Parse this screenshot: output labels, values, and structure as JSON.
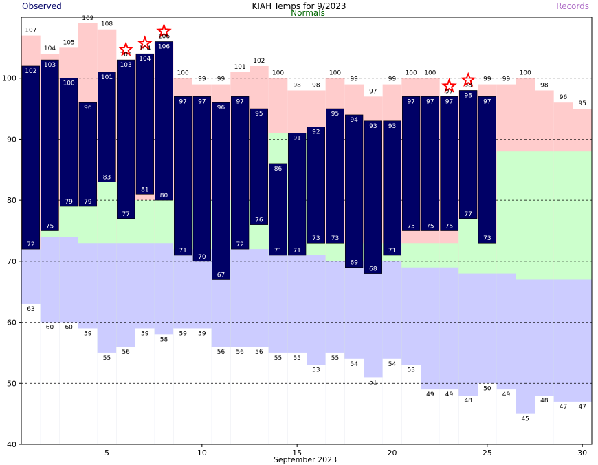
{
  "chart_data": {
    "type": "bar",
    "title": "KIAH Temps for 9/2023",
    "xlabel": "September 2023",
    "legend": [
      "Observed",
      "Normals",
      "Records"
    ],
    "colors": {
      "observed": "#000066",
      "normal_high": "#ccffcc",
      "normal_low": "#ccccff",
      "record_high": "#ffcccc",
      "record_low": "#ffffff",
      "star": "#ff0000",
      "legend_observed": "#000066",
      "legend_normals": "#006600",
      "legend_records": "#b070c8"
    },
    "ylim": [
      40,
      110
    ],
    "xlim": [
      0.5,
      30.5
    ],
    "yticks": [
      40,
      50,
      60,
      70,
      80,
      90,
      100
    ],
    "xticks": [
      5,
      10,
      15,
      20,
      25,
      30
    ],
    "grid": "dashed-horizontal",
    "days": [
      1,
      2,
      3,
      4,
      5,
      6,
      7,
      8,
      9,
      10,
      11,
      12,
      13,
      14,
      15,
      16,
      17,
      18,
      19,
      20,
      21,
      22,
      23,
      24,
      25,
      26,
      27,
      28,
      29,
      30
    ],
    "observed_high": [
      102,
      103,
      100,
      96,
      101,
      103,
      104,
      106,
      97,
      97,
      96,
      97,
      95,
      86,
      91,
      92,
      95,
      94,
      93,
      93,
      97,
      97,
      97,
      98,
      97,
      null,
      null,
      null,
      null,
      null
    ],
    "observed_low": [
      72,
      75,
      79,
      79,
      83,
      77,
      81,
      80,
      71,
      70,
      67,
      72,
      76,
      71,
      71,
      73,
      73,
      69,
      68,
      71,
      75,
      75,
      75,
      77,
      73,
      null,
      null,
      null,
      null,
      null
    ],
    "normal_high": [
      null,
      75,
      79,
      79,
      83,
      83,
      80,
      80,
      80,
      80,
      80,
      80,
      76,
      91,
      91,
      73,
      73,
      73,
      73,
      73,
      73,
      73,
      73,
      77,
      73,
      88,
      88,
      88,
      88,
      88
    ],
    "normal_low": [
      72,
      74,
      74,
      73,
      73,
      73,
      73,
      73,
      72,
      72,
      72,
      72,
      72,
      71,
      71,
      71,
      70,
      70,
      70,
      70,
      69,
      69,
      69,
      68,
      68,
      68,
      67,
      67,
      67,
      67
    ],
    "record_high": [
      107,
      104,
      105,
      109,
      108,
      103,
      104,
      106,
      100,
      99,
      99,
      101,
      102,
      100,
      98,
      98,
      100,
      99,
      97,
      99,
      100,
      100,
      97,
      98,
      99,
      99,
      100,
      98,
      96,
      95
    ],
    "record_low": [
      63,
      60,
      60,
      59,
      55,
      56,
      59,
      58,
      59,
      59,
      56,
      56,
      56,
      55,
      55,
      53,
      55,
      54,
      51,
      54,
      53,
      49,
      49,
      48,
      50,
      49,
      45,
      48,
      47,
      47
    ],
    "record_set_days": [
      6,
      7,
      8,
      23,
      24
    ]
  }
}
